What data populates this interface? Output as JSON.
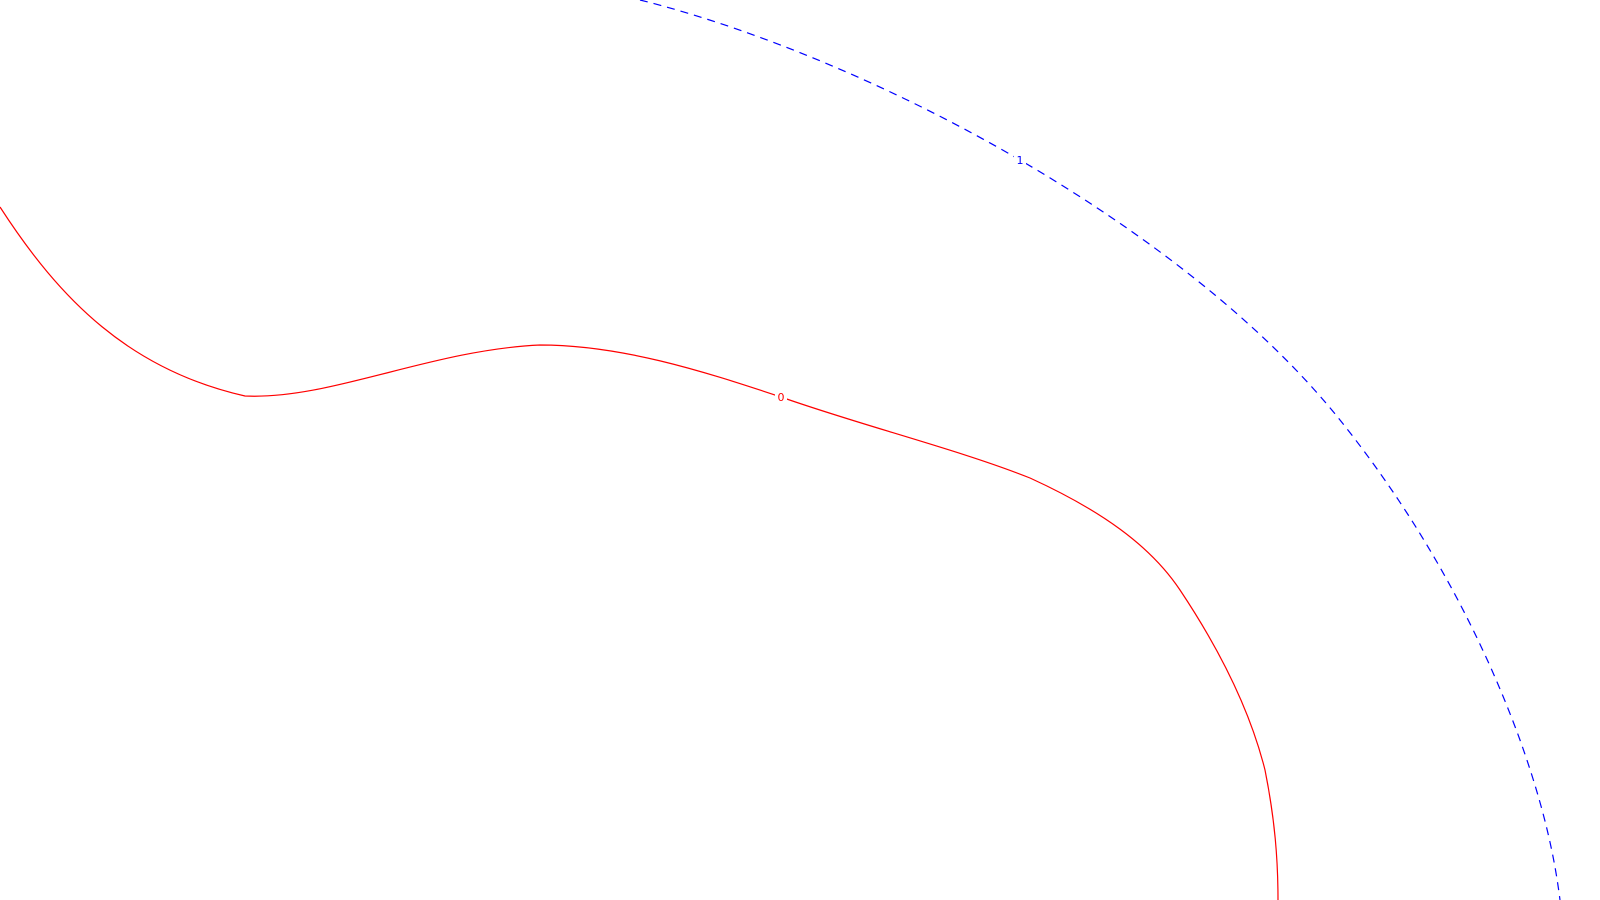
{
  "contours": [
    {
      "name": "red-solid-contour",
      "label": "0",
      "color": "#ff0000",
      "style": "solid"
    },
    {
      "name": "blue-dashed-contour",
      "label": "1",
      "color": "#0000ff",
      "style": "dashed"
    }
  ]
}
